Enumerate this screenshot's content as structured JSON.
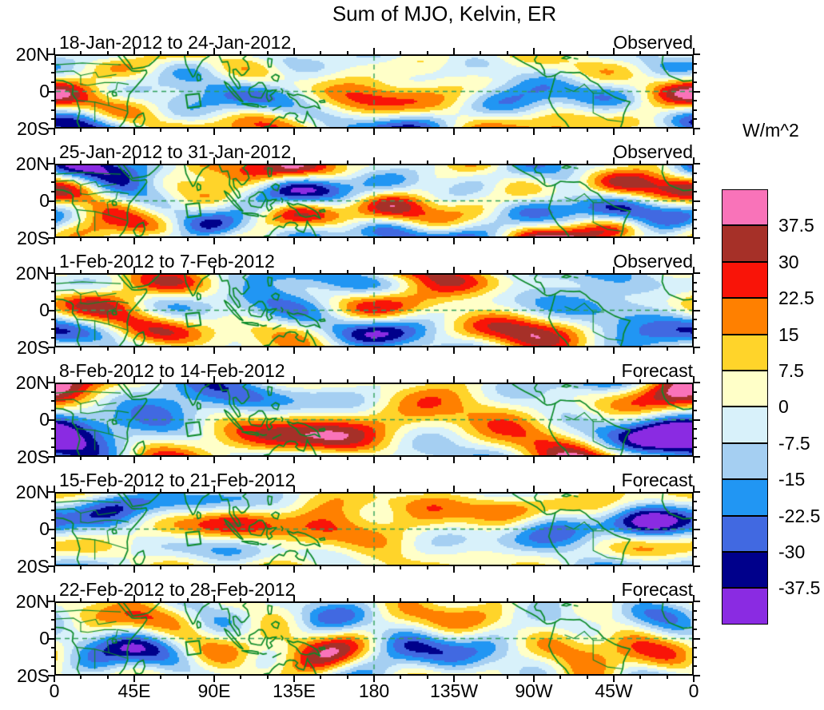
{
  "chart_data": {
    "type": "filled_contour_map",
    "title": "Sum of MJO, Kelvin, ER",
    "units_label": "W/m^2",
    "x_tick_labels": [
      "0",
      "45E",
      "90E",
      "135E",
      "180",
      "135W",
      "90W",
      "45W",
      "0"
    ],
    "y_tick_labels": [
      "20N",
      "0",
      "20S"
    ],
    "lon_range_deg": [
      0,
      360
    ],
    "lat_range_deg": [
      -20,
      20
    ],
    "contour_levels": [
      -37.5,
      -30,
      -22.5,
      -15,
      -7.5,
      0,
      7.5,
      15,
      22.5,
      30,
      37.5
    ],
    "colorbar": {
      "labels_top_to_bottom": [
        "37.5",
        "30",
        "22.5",
        "15",
        "7.5",
        "0",
        "-7.5",
        "-15",
        "-22.5",
        "-30",
        "-37.5"
      ],
      "colors_top_to_bottom": [
        "#F973B9",
        "#A63028",
        "#F91408",
        "#FF8000",
        "#FFD42A",
        "#FFFFC8",
        "#D8F1FA",
        "#A5CFF2",
        "#2196F3",
        "#4169E1",
        "#00008B",
        "#8A2BE2"
      ]
    },
    "panels": [
      {
        "date_range": "18-Jan-2012 to 24-Jan-2012",
        "status": "Observed"
      },
      {
        "date_range": "25-Jan-2012 to 31-Jan-2012",
        "status": "Observed"
      },
      {
        "date_range": "1-Feb-2012 to 7-Feb-2012",
        "status": "Observed"
      },
      {
        "date_range": "8-Feb-2012 to 14-Feb-2012",
        "status": "Forecast"
      },
      {
        "date_range": "15-Feb-2012 to 21-Feb-2012",
        "status": "Forecast"
      },
      {
        "date_range": "22-Feb-2012 to 28-Feb-2012",
        "status": "Forecast"
      }
    ],
    "reference_lines": {
      "equator_label": "0",
      "dateline_label": "180"
    },
    "land_outline_color": "#0A8A28",
    "grid_dash_color": "#2FA05A"
  }
}
